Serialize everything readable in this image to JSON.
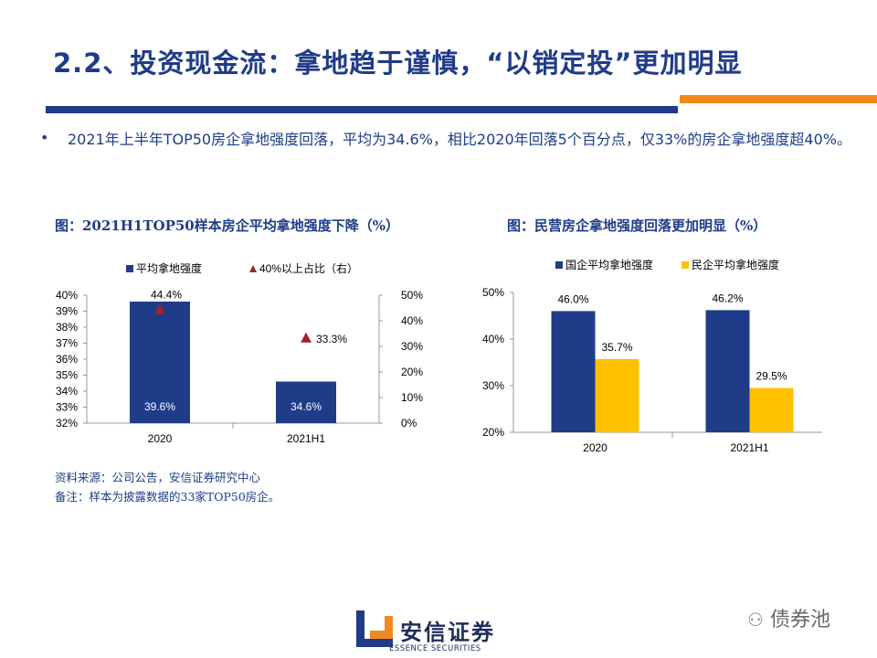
{
  "title": "2.2、投资现金流：拿地趋于谨慎，“以销定投”更加明显",
  "bullet": "2021年上半年TOP50房企拿地强度回落，平均为34.6%，相比2020年回落5个百分点，仅33%的房企拿地强度超40%。",
  "bullet_symbol": "•",
  "chart1": {
    "title": "图：2021H1TOP50样本房企平均拿地强度下降（%）"
  },
  "chart2": {
    "title": "图：民营房企拿地强度回落更加明显（%）"
  },
  "source": {
    "line1": "资料来源：公司公告，安信证券研究中心",
    "line2": "备注：样本为披露数据的33家TOP50房企。"
  },
  "logo": {
    "name": "安信证券",
    "sub": "ESSENCE SECURITIES"
  },
  "watermark": "债券池",
  "colors": {
    "navy": "#1f3c88",
    "orange": "#f08a1c",
    "yellow": "#ffc000",
    "triangle": "#a3232b"
  },
  "chart_data": [
    {
      "type": "bar",
      "categories": [
        "2020",
        "2021H1"
      ],
      "series": [
        {
          "name": "平均拿地强度",
          "values": [
            39.6,
            34.6
          ],
          "axis": "left",
          "color": "#1f3c88",
          "labels": [
            "39.6%",
            "34.6%"
          ]
        },
        {
          "name": "40%以上占比（右）",
          "type": "scatter",
          "values": [
            44.4,
            33.3
          ],
          "axis": "right",
          "color": "#a3232b",
          "labels": [
            "44.4%",
            "33.3%"
          ]
        }
      ],
      "ylim": [
        32,
        40
      ],
      "yticks": [
        "32%",
        "33%",
        "34%",
        "35%",
        "36%",
        "37%",
        "38%",
        "39%",
        "40%"
      ],
      "y2lim": [
        0,
        50
      ],
      "y2ticks": [
        "0%",
        "10%",
        "20%",
        "30%",
        "40%",
        "50%"
      ],
      "legend": "top"
    },
    {
      "type": "bar",
      "categories": [
        "2020",
        "2021H1"
      ],
      "series": [
        {
          "name": "国企平均拿地强度",
          "values": [
            46.0,
            46.2
          ],
          "color": "#1f3c88",
          "labels": [
            "46.0%",
            "46.2%"
          ]
        },
        {
          "name": "民企平均拿地强度",
          "values": [
            35.7,
            29.5
          ],
          "color": "#ffc000",
          "labels": [
            "35.7%",
            "29.5%"
          ]
        }
      ],
      "ylim": [
        20,
        50
      ],
      "yticks": [
        "20%",
        "30%",
        "40%",
        "50%"
      ],
      "legend": "top"
    }
  ]
}
